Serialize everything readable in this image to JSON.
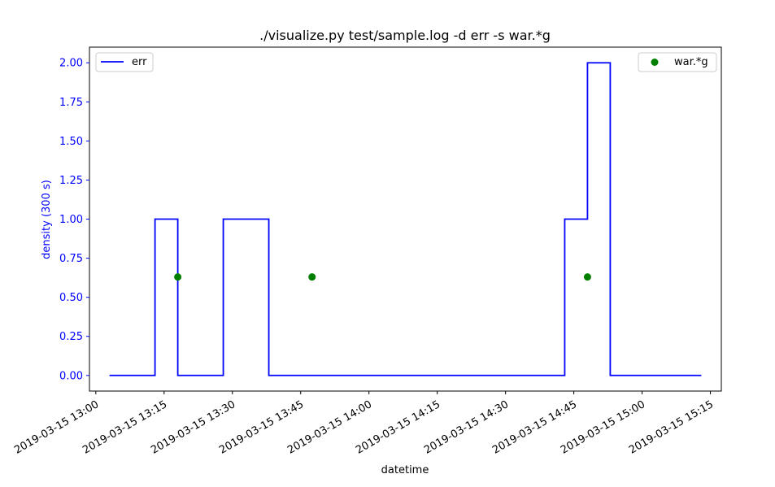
{
  "chart_data": {
    "type": "line",
    "title": "./visualize.py test/sample.log -d err -s war.*g",
    "xlabel": "datetime",
    "ylabel": "density (300 s)",
    "x_ticks": [
      "2019-03-15 13:00",
      "2019-03-15 13:15",
      "2019-03-15 13:30",
      "2019-03-15 13:45",
      "2019-03-15 14:00",
      "2019-03-15 14:15",
      "2019-03-15 14:30",
      "2019-03-15 14:45",
      "2019-03-15 15:00",
      "2019-03-15 15:15"
    ],
    "y_ticks": [
      "0.00",
      "0.25",
      "0.50",
      "0.75",
      "1.00",
      "1.25",
      "1.50",
      "1.75",
      "2.00"
    ],
    "xlim": [
      "2019-03-15 12:58:36",
      "2019-03-15 15:17:24"
    ],
    "ylim": [
      -0.1,
      2.1
    ],
    "grid": false,
    "ylabel_color": "#0000ff",
    "series": [
      {
        "name": "err",
        "kind": "step-line",
        "color": "#0000ff",
        "legend_position": "upper-left",
        "points": [
          [
            "2019-03-15 13:03",
            0
          ],
          [
            "2019-03-15 13:13",
            0
          ],
          [
            "2019-03-15 13:13",
            1
          ],
          [
            "2019-03-15 13:18",
            1
          ],
          [
            "2019-03-15 13:18",
            0
          ],
          [
            "2019-03-15 13:28",
            0
          ],
          [
            "2019-03-15 13:28",
            1
          ],
          [
            "2019-03-15 13:38",
            1
          ],
          [
            "2019-03-15 13:38",
            0
          ],
          [
            "2019-03-15 14:43",
            0
          ],
          [
            "2019-03-15 14:43",
            1
          ],
          [
            "2019-03-15 14:48",
            1
          ],
          [
            "2019-03-15 14:48",
            2
          ],
          [
            "2019-03-15 14:53",
            2
          ],
          [
            "2019-03-15 14:53",
            0
          ],
          [
            "2019-03-15 15:13",
            0
          ]
        ]
      },
      {
        "name": "war.*g",
        "kind": "scatter",
        "color": "#008000",
        "legend_position": "upper-right",
        "points": [
          [
            "2019-03-15 13:18",
            0.63
          ],
          [
            "2019-03-15 13:47.5",
            0.63
          ],
          [
            "2019-03-15 14:48",
            0.63
          ]
        ]
      }
    ]
  }
}
